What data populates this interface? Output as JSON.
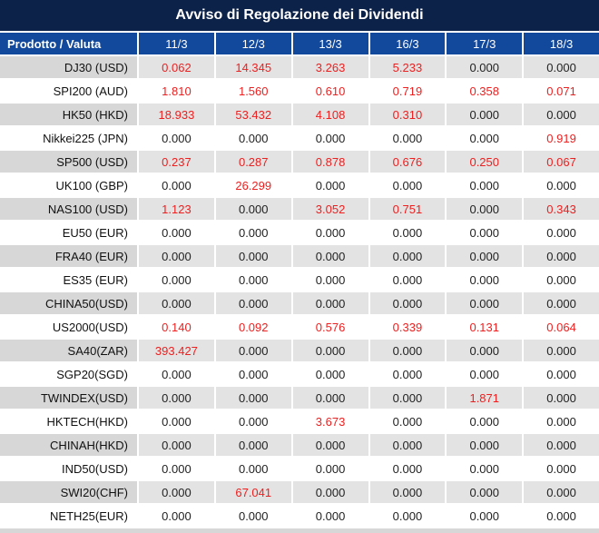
{
  "title": "Avviso di Regolazione dei Dividendi",
  "colors": {
    "title_bar": "#0d2248",
    "header_row": "#12499c",
    "alt_row_label": "#d7d7d7",
    "alt_row_value": "#e3e3e3",
    "value_red": "#ee1f1f",
    "value_black": "#222222"
  },
  "table": {
    "product_header": "Prodotto / Valuta",
    "date_columns": [
      "11/3",
      "12/3",
      "13/3",
      "16/3",
      "17/3",
      "18/3"
    ],
    "rows": [
      {
        "label": "DJ30 (USD)",
        "values": [
          "0.062",
          "14.345",
          "3.263",
          "5.233",
          "0.000",
          "0.000"
        ],
        "red": [
          true,
          true,
          true,
          true,
          false,
          false
        ]
      },
      {
        "label": "SPI200 (AUD)",
        "values": [
          "1.810",
          "1.560",
          "0.610",
          "0.719",
          "0.358",
          "0.071"
        ],
        "red": [
          true,
          true,
          true,
          true,
          true,
          true
        ]
      },
      {
        "label": "HK50 (HKD)",
        "values": [
          "18.933",
          "53.432",
          "4.108",
          "0.310",
          "0.000",
          "0.000"
        ],
        "red": [
          true,
          true,
          true,
          true,
          false,
          false
        ]
      },
      {
        "label": "Nikkei225 (JPN)",
        "values": [
          "0.000",
          "0.000",
          "0.000",
          "0.000",
          "0.000",
          "0.919"
        ],
        "red": [
          false,
          false,
          false,
          false,
          false,
          true
        ]
      },
      {
        "label": "SP500 (USD)",
        "values": [
          "0.237",
          "0.287",
          "0.878",
          "0.676",
          "0.250",
          "0.067"
        ],
        "red": [
          true,
          true,
          true,
          true,
          true,
          true
        ]
      },
      {
        "label": "UK100 (GBP)",
        "values": [
          "0.000",
          "26.299",
          "0.000",
          "0.000",
          "0.000",
          "0.000"
        ],
        "red": [
          false,
          true,
          false,
          false,
          false,
          false
        ]
      },
      {
        "label": "NAS100 (USD)",
        "values": [
          "1.123",
          "0.000",
          "3.052",
          "0.751",
          "0.000",
          "0.343"
        ],
        "red": [
          true,
          false,
          true,
          true,
          false,
          true
        ]
      },
      {
        "label": "EU50 (EUR)",
        "values": [
          "0.000",
          "0.000",
          "0.000",
          "0.000",
          "0.000",
          "0.000"
        ],
        "red": [
          false,
          false,
          false,
          false,
          false,
          false
        ]
      },
      {
        "label": "FRA40 (EUR)",
        "values": [
          "0.000",
          "0.000",
          "0.000",
          "0.000",
          "0.000",
          "0.000"
        ],
        "red": [
          false,
          false,
          false,
          false,
          false,
          false
        ]
      },
      {
        "label": "ES35 (EUR)",
        "values": [
          "0.000",
          "0.000",
          "0.000",
          "0.000",
          "0.000",
          "0.000"
        ],
        "red": [
          false,
          false,
          false,
          false,
          false,
          false
        ]
      },
      {
        "label": "CHINA50(USD)",
        "values": [
          "0.000",
          "0.000",
          "0.000",
          "0.000",
          "0.000",
          "0.000"
        ],
        "red": [
          false,
          false,
          false,
          false,
          false,
          false
        ]
      },
      {
        "label": "US2000(USD)",
        "values": [
          "0.140",
          "0.092",
          "0.576",
          "0.339",
          "0.131",
          "0.064"
        ],
        "red": [
          true,
          true,
          true,
          true,
          true,
          true
        ]
      },
      {
        "label": "SA40(ZAR)",
        "values": [
          "393.427",
          "0.000",
          "0.000",
          "0.000",
          "0.000",
          "0.000"
        ],
        "red": [
          true,
          false,
          false,
          false,
          false,
          false
        ]
      },
      {
        "label": "SGP20(SGD)",
        "values": [
          "0.000",
          "0.000",
          "0.000",
          "0.000",
          "0.000",
          "0.000"
        ],
        "red": [
          false,
          false,
          false,
          false,
          false,
          false
        ]
      },
      {
        "label": "TWINDEX(USD)",
        "values": [
          "0.000",
          "0.000",
          "0.000",
          "0.000",
          "1.871",
          "0.000"
        ],
        "red": [
          false,
          false,
          false,
          false,
          true,
          false
        ]
      },
      {
        "label": "HKTECH(HKD)",
        "values": [
          "0.000",
          "0.000",
          "3.673",
          "0.000",
          "0.000",
          "0.000"
        ],
        "red": [
          false,
          false,
          true,
          false,
          false,
          false
        ]
      },
      {
        "label": "CHINAH(HKD)",
        "values": [
          "0.000",
          "0.000",
          "0.000",
          "0.000",
          "0.000",
          "0.000"
        ],
        "red": [
          false,
          false,
          false,
          false,
          false,
          false
        ]
      },
      {
        "label": "IND50(USD)",
        "values": [
          "0.000",
          "0.000",
          "0.000",
          "0.000",
          "0.000",
          "0.000"
        ],
        "red": [
          false,
          false,
          false,
          false,
          false,
          false
        ]
      },
      {
        "label": "SWI20(CHF)",
        "values": [
          "0.000",
          "67.041",
          "0.000",
          "0.000",
          "0.000",
          "0.000"
        ],
        "red": [
          false,
          true,
          false,
          false,
          false,
          false
        ]
      },
      {
        "label": "NETH25(EUR)",
        "values": [
          "0.000",
          "0.000",
          "0.000",
          "0.000",
          "0.000",
          "0.000"
        ],
        "red": [
          false,
          false,
          false,
          false,
          false,
          false
        ]
      }
    ]
  }
}
